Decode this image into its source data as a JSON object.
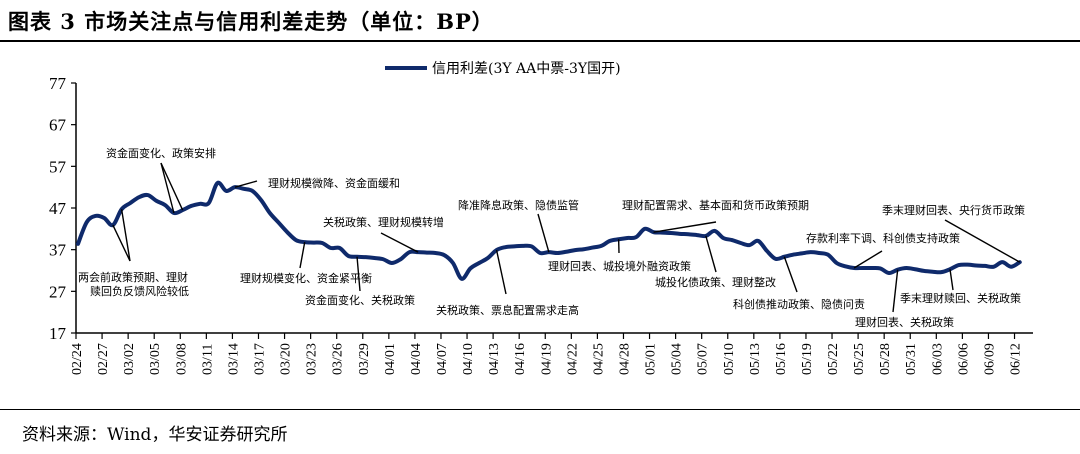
{
  "title": "图表 3 市场关注点与信用利差走势（单位：BP）",
  "source": "资料来源：Wind，华安证券研究所",
  "chart_data": {
    "type": "line",
    "title": "",
    "xlabel": "",
    "ylabel": "",
    "ylim": [
      17,
      77
    ],
    "yticks": [
      17,
      27,
      37,
      47,
      57,
      67,
      77
    ],
    "xticks": [
      "02/24",
      "02/27",
      "03/02",
      "03/05",
      "03/08",
      "03/11",
      "03/14",
      "03/17",
      "03/20",
      "03/23",
      "03/26",
      "03/29",
      "04/01",
      "04/04",
      "04/07",
      "04/10",
      "04/13",
      "04/16",
      "04/19",
      "04/22",
      "04/25",
      "04/28",
      "05/01",
      "05/04",
      "05/07",
      "05/10",
      "05/13",
      "05/16",
      "05/19",
      "05/22",
      "05/25",
      "05/28",
      "05/31",
      "06/03",
      "06/06",
      "06/09",
      "06/12"
    ],
    "grid": false,
    "legend_position": "top-center",
    "line_color": "#0f2a6b",
    "series": [
      {
        "name": "信用利差(3Y AA中票-3Y国开)",
        "x": [
          "02/24",
          "02/25",
          "02/26",
          "02/27",
          "02/28",
          "03/01",
          "03/02",
          "03/03",
          "03/04",
          "03/05",
          "03/06",
          "03/07",
          "03/08",
          "03/09",
          "03/10",
          "03/11",
          "03/12",
          "03/13",
          "03/14",
          "03/15",
          "03/16",
          "03/17",
          "03/18",
          "03/19",
          "03/20",
          "03/21",
          "03/22",
          "03/23",
          "03/24",
          "03/25",
          "03/26",
          "03/27",
          "03/28",
          "03/29",
          "03/30",
          "03/31",
          "04/01",
          "04/02",
          "04/03",
          "04/04",
          "04/05",
          "04/06",
          "04/07",
          "04/08",
          "04/09",
          "04/10",
          "04/11",
          "04/12",
          "04/13",
          "04/14",
          "04/15",
          "04/16",
          "04/17",
          "04/18",
          "04/19",
          "04/20",
          "04/21",
          "04/22",
          "04/23",
          "04/24",
          "04/25",
          "04/26",
          "04/27",
          "04/28",
          "04/29",
          "04/30",
          "05/01",
          "05/02",
          "05/03",
          "05/04",
          "05/05",
          "05/06",
          "05/07",
          "05/08",
          "05/09",
          "05/10",
          "05/11",
          "05/12",
          "05/13",
          "05/14",
          "05/15",
          "05/16",
          "05/17",
          "05/18",
          "05/19",
          "05/20",
          "05/21",
          "05/22",
          "05/23",
          "05/24",
          "05/25",
          "05/26",
          "05/27",
          "05/28",
          "05/29",
          "05/30",
          "05/31",
          "06/01",
          "06/02",
          "06/03",
          "06/04",
          "06/05",
          "06/06",
          "06/07",
          "06/08",
          "06/09",
          "06/10",
          "06/11",
          "06/12"
        ],
        "values": [
          38.4,
          43.6,
          45.1,
          44.6,
          42.9,
          46.7,
          48.2,
          49.6,
          50.1,
          48.7,
          47.7,
          45.8,
          46.5,
          47.5,
          48.0,
          48.2,
          53.0,
          51.1,
          52.0,
          51.6,
          51.1,
          48.9,
          45.8,
          43.5,
          41.2,
          39.3,
          38.8,
          38.7,
          38.6,
          37.4,
          37.4,
          35.5,
          35.3,
          35.2,
          35.0,
          34.7,
          33.8,
          34.7,
          36.4,
          36.4,
          36.3,
          36.2,
          35.7,
          33.8,
          30.0,
          32.5,
          33.8,
          35.0,
          36.9,
          37.6,
          37.8,
          37.9,
          37.8,
          36.2,
          36.4,
          36.2,
          36.5,
          36.9,
          37.1,
          37.5,
          37.9,
          39.1,
          39.5,
          39.8,
          40.0,
          42.0,
          41.2,
          41.1,
          41.0,
          40.8,
          40.7,
          40.5,
          40.3,
          41.5,
          39.8,
          39.3,
          38.6,
          38.1,
          39.1,
          36.7,
          34.8,
          35.3,
          35.8,
          36.1,
          36.4,
          36.2,
          35.8,
          33.8,
          33.0,
          32.6,
          32.6,
          32.6,
          32.5,
          31.4,
          32.2,
          32.6,
          32.3,
          31.9,
          31.7,
          31.6,
          32.3,
          33.3,
          33.4,
          33.2,
          33.1,
          32.9,
          34.0,
          32.9,
          34.0
        ]
      }
    ],
    "annotations": [
      {
        "lines": [
          "两会前政策预期、理财",
          "赎回负反馈风险较低"
        ],
        "points": [
          "02/28",
          "03/01"
        ]
      },
      {
        "lines": [
          "资金面变化、政策安排"
        ],
        "points": [
          "03/07",
          "03/08"
        ]
      },
      {
        "lines": [
          "理财规模微降、资金面缓和"
        ],
        "points": [
          "03/14"
        ]
      },
      {
        "lines": [
          "理财规模变化、资金紧平衡"
        ],
        "points": [
          "03/22"
        ]
      },
      {
        "lines": [
          "资金面变化、关税政策"
        ],
        "points": [
          "03/28"
        ]
      },
      {
        "lines": [
          "关税政策、理财规模转增"
        ],
        "points": [
          "04/04"
        ]
      },
      {
        "lines": [
          "关税政策、票息配置需求走高"
        ],
        "points": [
          "04/13"
        ]
      },
      {
        "lines": [
          "降准降息政策、隐债监管"
        ],
        "points": [
          "04/19"
        ]
      },
      {
        "lines": [
          "理财回表、城投境外融资政策"
        ],
        "points": [
          "04/27"
        ]
      },
      {
        "lines": [
          "理财配置需求、基本面和货币政策预期"
        ],
        "points": [
          "05/01"
        ]
      },
      {
        "lines": [
          "城投化债政策、理财整改"
        ],
        "points": [
          "05/07"
        ]
      },
      {
        "lines": [
          "科创债推动政策、隐债问责"
        ],
        "points": [
          "05/16"
        ]
      },
      {
        "lines": [
          "存款利率下调、科创债支持政策"
        ],
        "points": [
          "05/24"
        ]
      },
      {
        "lines": [
          "季末理财回表、央行货币政策"
        ],
        "points": [
          "06/12"
        ]
      },
      {
        "lines": [
          "季末理财赎回、关税政策"
        ],
        "points": [
          "06/04"
        ]
      },
      {
        "lines": [
          "理财回表、关税政策"
        ],
        "points": [
          "05/29"
        ]
      }
    ]
  }
}
